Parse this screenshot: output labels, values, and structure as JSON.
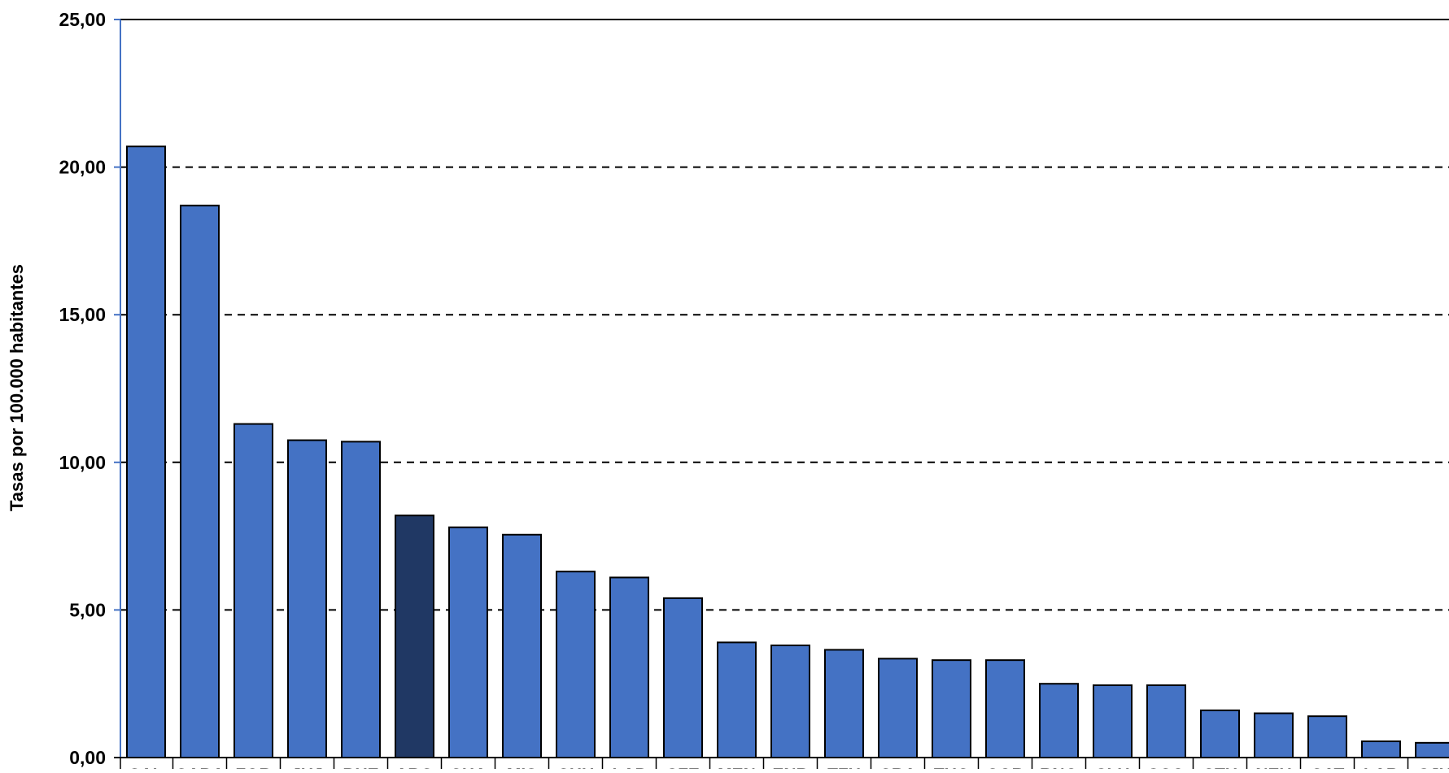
{
  "chart_data": {
    "type": "bar",
    "title": "",
    "xlabel": "",
    "ylabel": "Tasas por 100.000 habitantes",
    "ylim": [
      0,
      25
    ],
    "yticks": [
      "0,00",
      "5,00",
      "10,00",
      "15,00",
      "20,00",
      "25,00"
    ],
    "grid": "dashed horizontal",
    "legend": "none",
    "categories": [
      "SAL",
      "CABA",
      "FOR",
      "JUJ",
      "BUE",
      "ARG",
      "CHA",
      "MIS",
      "CHU",
      "LAP",
      "SFE",
      "MEN",
      "ENR",
      "TFU",
      "CRA",
      "TUC",
      "COR",
      "RNO",
      "SLU",
      "SCO",
      "CTU",
      "NEU",
      "CAT",
      "LAR",
      "SJU"
    ],
    "values": [
      20.7,
      18.7,
      11.3,
      10.75,
      10.7,
      8.2,
      7.8,
      7.55,
      6.3,
      6.1,
      5.4,
      3.9,
      3.8,
      3.65,
      3.35,
      3.3,
      3.3,
      2.5,
      2.45,
      2.45,
      1.6,
      1.5,
      1.4,
      0.55,
      0.5
    ],
    "highlight_category": "ARG",
    "colors": {
      "bar": "#4472C4",
      "highlight": "#203864",
      "bar_outline": "#000000",
      "grid": "#000000",
      "y_axis": "#4472C4"
    }
  }
}
